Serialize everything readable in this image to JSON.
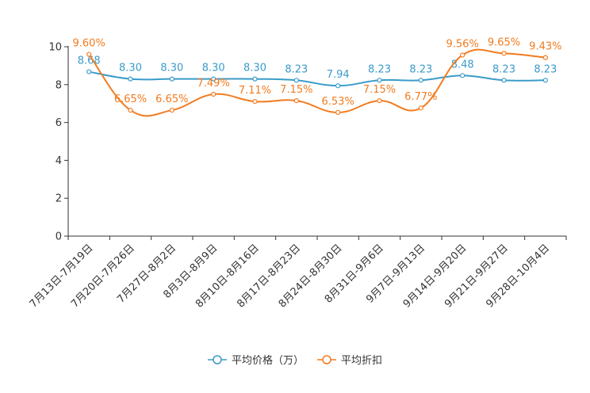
{
  "chart_data": {
    "type": "line",
    "title": "",
    "xlabel": "",
    "ylabel": "",
    "ylim": [
      0,
      10
    ],
    "yticks": [
      0,
      2,
      4,
      6,
      8,
      10
    ],
    "categories": [
      "7月13日-7月19日",
      "7月20日-7月26日",
      "7月27日-8月2日",
      "8月3日-8月9日",
      "8月10日-8月16日",
      "8月17日-8月23日",
      "8月24日-8月30日",
      "8月31日-9月6日",
      "9月7日-9月13日",
      "9月14日-9月20日",
      "9月21日-9月27日",
      "9月28日-10月4日"
    ],
    "series": [
      {
        "name": "平均价格（万）",
        "color": "#3a9bc9",
        "values": [
          8.68,
          8.3,
          8.3,
          8.3,
          8.3,
          8.23,
          7.94,
          8.23,
          8.23,
          8.48,
          8.23,
          8.23
        ],
        "labels": [
          "8.68",
          "8.30",
          "8.30",
          "8.30",
          "8.30",
          "8.23",
          "7.94",
          "8.23",
          "8.23",
          "8.48",
          "8.23",
          "8.23"
        ]
      },
      {
        "name": "平均折扣",
        "color": "#f27b1f",
        "values": [
          9.6,
          6.65,
          6.65,
          7.49,
          7.11,
          7.15,
          6.53,
          7.15,
          6.77,
          9.56,
          9.65,
          9.43
        ],
        "labels": [
          "9.60%",
          "6.65%",
          "6.65%",
          "7.49%",
          "7.11%",
          "7.15%",
          "6.53%",
          "7.15%",
          "6.77%",
          "9.56%",
          "9.65%",
          "9.43%"
        ]
      }
    ],
    "legend": {
      "position": "bottom"
    },
    "grid": false
  }
}
